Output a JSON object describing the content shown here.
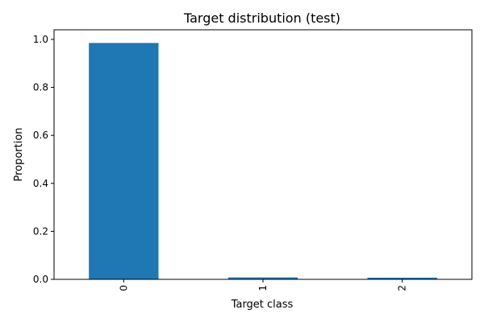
{
  "chart_data": {
    "type": "bar",
    "title": "Target distribution (test)",
    "xlabel": "Target class",
    "ylabel": "Proportion",
    "categories": [
      "0",
      "1",
      "2"
    ],
    "values": [
      0.985,
      0.008,
      0.007
    ],
    "ylim": [
      0.0,
      1.04
    ],
    "yticks": [
      0.0,
      0.2,
      0.4,
      0.6,
      0.8,
      1.0
    ],
    "ytick_labels": [
      "0.0",
      "0.2",
      "0.4",
      "0.6",
      "0.8",
      "1.0"
    ],
    "bar_color": "#1f77b4",
    "grid": false,
    "legend": "none",
    "x_tick_rotation": "vertical"
  }
}
